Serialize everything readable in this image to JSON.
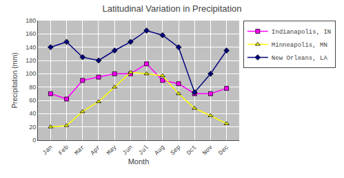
{
  "chart_data": {
    "type": "line",
    "title": "Latitudinal Variation in Precipitation",
    "xlabel": "Month",
    "ylabel": "Precipitation (mm)",
    "categories": [
      "Jan",
      "Feb",
      "Mar",
      "Apr",
      "May",
      "Jun",
      "Jul",
      "Aug",
      "Sep",
      "Oct",
      "Nov",
      "Dec"
    ],
    "series": [
      {
        "name": "Indianapolis, IN",
        "color": "#FF00FF",
        "marker": "square",
        "values": [
          70,
          62,
          90,
          95,
          100,
          100,
          115,
          90,
          85,
          70,
          70,
          78
        ]
      },
      {
        "name": "Minneapolis, MN",
        "color": "#FFFF00",
        "marker": "triangle-up",
        "values": [
          20,
          22,
          43,
          58,
          80,
          102,
          100,
          97,
          70,
          48,
          37,
          25
        ]
      },
      {
        "name": "New Orleans, LA",
        "color": "#000080",
        "marker": "diamond",
        "values": [
          140,
          148,
          125,
          120,
          135,
          148,
          165,
          158,
          140,
          72,
          100,
          135
        ]
      }
    ],
    "ylim": [
      0,
      180
    ],
    "yticks": [
      0,
      20,
      40,
      60,
      80,
      100,
      120,
      140,
      160,
      180
    ],
    "grid": true,
    "legend": "right"
  }
}
